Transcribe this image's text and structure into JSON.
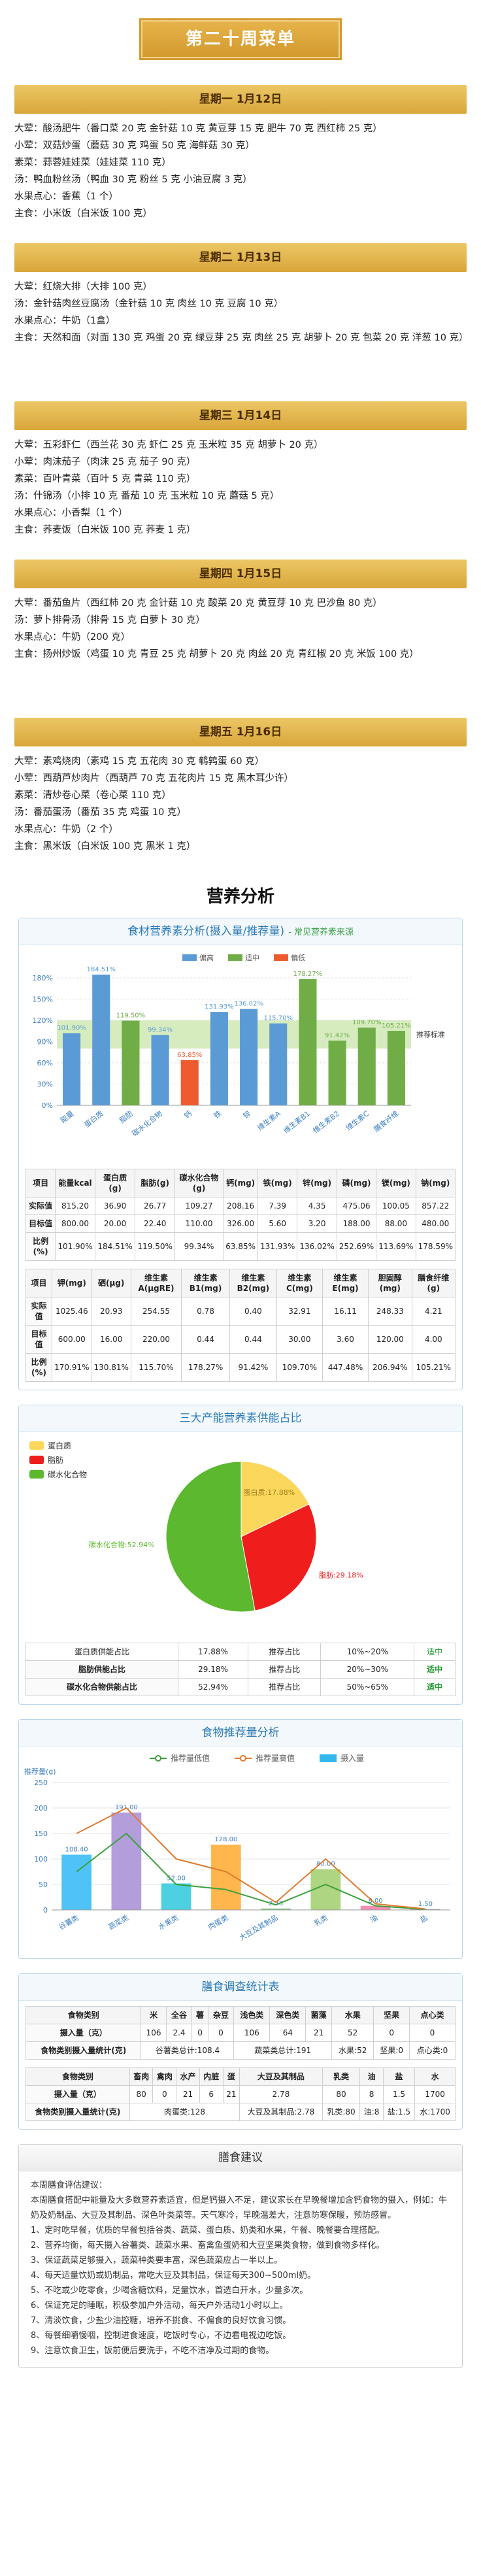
{
  "title": "第二十周菜单",
  "days": [
    {
      "header": "星期一 1月12日",
      "lines": [
        "大荤：酸汤肥牛（番口菜 20 克 金针菇 10 克 黄豆芽 15 克 肥牛 70 克 西红柿 25 克）",
        "小荤：双菇炒蛋（蘑菇 30 克 鸡蛋 50 克 海鲜菇 30 克）",
        "素菜：蒜蓉娃娃菜（娃娃菜 110 克）",
        "汤：鸭血粉丝汤（鸭血 30 克 粉丝 5 克 小油豆腐 3 克）",
        "水果点心：香蕉（1 个）",
        "主食：小米饭（白米饭 100 克）"
      ]
    },
    {
      "header": "星期二 1月13日",
      "lines": [
        "大荤：红烧大排（大排 100 克）",
        "汤：金针菇肉丝豆腐汤（金针菇 10 克 肉丝 10 克 豆腐 10 克）",
        "水果点心：牛奶（1盒）",
        "主食：天然和面（对面 130 克 鸡蛋 20 克 绿豆芽 25 克 肉丝 25 克 胡萝卜 20 克 包菜 20 克 洋葱 10 克）"
      ]
    },
    {
      "header": "星期三 1月14日",
      "lines": [
        "大荤：五彩虾仁（西兰花 30 克 虾仁 25 克 玉米粒 35 克 胡萝卜 20 克）",
        "小荤：肉沫茄子（肉沫 25 克 茄子 90 克）",
        "素菜：百叶青菜（百叶 5 克 青菜 110 克）",
        "汤：什锦汤（小排 10 克 番茄 10 克 玉米粒 10 克 蘑菇 5 克）",
        "水果点心：小香梨（1 个）",
        "主食：荞麦饭（白米饭 100 克 荞麦 1 克）"
      ]
    },
    {
      "header": "星期四 1月15日",
      "lines": [
        "大荤：番茄鱼片（西红柿 20 克 金针菇 10 克 酸菜 20 克 黄豆芽 10 克 巴沙鱼 80 克）",
        "汤：萝卜排骨汤（排骨 15 克 白萝卜 30 克）",
        "水果点心：牛奶（200 克）",
        "主食：扬州炒饭（鸡蛋 10 克 青豆 25 克 胡萝卜 20 克 肉丝 20 克 青红椒 20 克 米饭 100 克）"
      ]
    },
    {
      "header": "星期五 1月16日",
      "lines": [
        "大荤：素鸡烧肉（素鸡 15 克 五花肉 30 克 鹌鹑蛋 60 克）",
        "小荤：西葫芦炒肉片（西葫芦 70 克 五花肉片 15 克 黑木耳少许）",
        "素菜：清炒卷心菜（卷心菜 110 克）",
        "汤：番茄蛋汤（番茄 35 克 鸡蛋 10 克）",
        "水果点心：牛奶（2 个）",
        "主食：黑米饭（白米饭 100 克 黑米 1 克）"
      ]
    }
  ],
  "section_title": "营养分析",
  "chart_data": [
    {
      "type": "bar",
      "title": "食材营养素分析(摄入量/推荐量)",
      "subtitle": "- 常见营养素来源",
      "categories": [
        "能量",
        "蛋白质",
        "脂肪",
        "碳水化合物",
        "钙",
        "铁",
        "锌",
        "维生素A",
        "维生素B1",
        "维生素B2",
        "维生素C",
        "膳食纤维"
      ],
      "values": [
        101.9,
        184.51,
        119.5,
        99.34,
        63.85,
        131.93,
        136.02,
        115.7,
        178.27,
        91.42,
        109.7,
        105.21
      ],
      "value_labels": [
        "101.90%",
        "184.51%",
        "119.50%",
        "99.34%",
        "63.85%",
        "131.93%",
        "136.02%",
        "115.70%",
        "178.27%",
        "91.42%",
        "109.70%",
        "105.21%"
      ],
      "colors": [
        "#5b9bd5",
        "#5b9bd5",
        "#70ad47",
        "#5b9bd5",
        "#ed5b2f",
        "#5b9bd5",
        "#5b9bd5",
        "#5b9bd5",
        "#70ad47",
        "#70ad47",
        "#70ad47",
        "#70ad47"
      ],
      "legend": [
        {
          "name": "偏高",
          "color": "#5b9bd5"
        },
        {
          "name": "适中",
          "color": "#70ad47"
        },
        {
          "name": "偏低",
          "color": "#ed5b2f"
        }
      ],
      "band": {
        "label": "推荐标准",
        "range": [
          80,
          120
        ],
        "color": "#b5dc8a"
      },
      "ylim": [
        0,
        180
      ],
      "yticks": [
        {
          "value": 0,
          "label": "0%"
        },
        {
          "value": 30,
          "label": "30%"
        },
        {
          "value": 60,
          "label": "60%"
        },
        {
          "value": 90,
          "label": "90%"
        },
        {
          "value": 120,
          "label": "120%"
        },
        {
          "value": 150,
          "label": "150%"
        },
        {
          "value": 180,
          "label": "180%"
        }
      ],
      "grid": true
    },
    {
      "type": "pie",
      "title": "三大产能营养素供能占比",
      "categories": [
        "蛋白质",
        "脂肪",
        "碳水化合物"
      ],
      "values": [
        17.88,
        29.18,
        52.94
      ],
      "value_labels": [
        "蛋白质:17.88%",
        "脂肪:29.18%",
        "碳水化合物:52.94%"
      ],
      "colors": [
        "#fbd75b",
        "#f01d1d",
        "#5cb82e"
      ]
    },
    {
      "type": "combo",
      "title": "食物推荐量分析",
      "y_label": "推荐量(g)",
      "categories": [
        "谷薯类",
        "蔬菜类",
        "水果类",
        "肉蛋类",
        "大豆及其制品",
        "乳类",
        "油",
        "盐"
      ],
      "series": [
        {
          "name": "推荐量低值",
          "type": "line",
          "color": "#3ca03c",
          "values": [
            75,
            150,
            50,
            40,
            10,
            50,
            8,
            1
          ]
        },
        {
          "name": "推荐量高值",
          "type": "line",
          "color": "#e07a30",
          "values": [
            150,
            200,
            100,
            75,
            15,
            100,
            12,
            2
          ]
        },
        {
          "name": "摄入量",
          "type": "bar",
          "color": "#33b8ee",
          "values": [
            108.4,
            191,
            52,
            128,
            2.78,
            80,
            8,
            1.5
          ],
          "value_labels": [
            "108.40",
            "191.00",
            "52.00",
            "128.00",
            "2.78",
            "80.00",
            "8.00",
            "1.50"
          ]
        }
      ],
      "colors": [
        "#4fc3f7",
        "#b39ddb",
        "#4dd0e1",
        "#ffb74d",
        "#81c784",
        "#aed581",
        "#f48fb1",
        "#90a4ae"
      ],
      "ylim": [
        0,
        250
      ],
      "yticks": [
        0,
        50,
        100,
        150,
        200,
        250
      ],
      "grid": true
    }
  ],
  "nutrient_table": [
    [
      [
        "项目",
        "能量kcal",
        "蛋白质(g)",
        "脂肪(g)",
        "碳水化合物(g)",
        "钙(mg)",
        "铁(mg)",
        "锌(mg)",
        "磷(mg)",
        "镁(mg)",
        "钠(mg)"
      ],
      [
        "实际值",
        "815.20",
        "36.90",
        "26.77",
        "109.27",
        "208.16",
        "7.39",
        "4.35",
        "475.06",
        "100.05",
        "857.22"
      ],
      [
        "目标值",
        "800.00",
        "20.00",
        "22.40",
        "110.00",
        "326.00",
        "5.60",
        "3.20",
        "188.00",
        "88.00",
        "480.00"
      ],
      [
        "比例(%)",
        "101.90%",
        "184.51%",
        "119.50%",
        "99.34%",
        "63.85%",
        "131.93%",
        "136.02%",
        "252.69%",
        "113.69%",
        "178.59%"
      ]
    ],
    [
      [
        "项目",
        "钾(mg)",
        "硒(μg)",
        "维生素A(μgRE)",
        "维生素B1(mg)",
        "维生素B2(mg)",
        "维生素C(mg)",
        "维生素E(mg)",
        "胆固醇(mg)",
        "膳食纤维(g)"
      ],
      [
        "实际值",
        "1025.46",
        "20.93",
        "254.55",
        "0.78",
        "0.40",
        "32.91",
        "16.11",
        "248.33",
        "4.21"
      ],
      [
        "目标值",
        "600.00",
        "16.00",
        "220.00",
        "0.44",
        "0.44",
        "30.00",
        "3.60",
        "120.00",
        "4.00"
      ],
      [
        "比例(%)",
        "170.91%",
        "130.81%",
        "115.70%",
        "178.27%",
        "91.42%",
        "109.70%",
        "447.48%",
        "206.94%",
        "105.21%"
      ]
    ]
  ],
  "energy_table": [
    [
      "蛋白质供能占比",
      "17.88%",
      "推荐占比",
      "10%~20%",
      "适中"
    ],
    [
      "脂肪供能占比",
      "29.18%",
      "推荐占比",
      "20%~30%",
      "适中"
    ],
    [
      "碳水化合物供能占比",
      "52.94%",
      "推荐占比",
      "50%~65%",
      "适中"
    ]
  ],
  "food_stats": {
    "title": "膳食调查统计表",
    "tables": [
      [
        [
          "食物类别",
          "米",
          "全谷",
          "薯",
          "杂豆",
          "浅色类",
          "深色类",
          "菌藻",
          "水果",
          "坚果",
          "点心类"
        ],
        [
          "摄入量（克）",
          "106",
          "2.4",
          "0",
          "0",
          "106",
          "64",
          "21",
          "52",
          "0",
          "0"
        ],
        [
          "食物类别摄入量统计(克)",
          "谷薯类总计:108.4",
          "蔬菜类总计:191",
          "水果:52",
          "坚果:0",
          "点心类:0"
        ]
      ],
      [
        [
          "食物类别",
          "畜肉",
          "禽肉",
          "水产",
          "内脏",
          "蛋",
          "大豆及其制品",
          "乳类",
          "油",
          "盐",
          "水"
        ],
        [
          "摄入量（克）",
          "80",
          "0",
          "21",
          "6",
          "21",
          "2.78",
          "80",
          "8",
          "1.5",
          "1700"
        ],
        [
          "食物类别摄入量统计(克)",
          "肉蛋类:128",
          "大豆及其制品:2.78",
          "乳类:80",
          "油:8",
          "盐:1.5",
          "水:1700"
        ]
      ]
    ]
  },
  "advice": {
    "title": "膳食建议",
    "paragraphs": [
      "本周膳食评估建议：",
      "本周膳食搭配中能量及大多数营养素适宜，但是钙摄入不足，建议家长在早晚餐增加含钙食物的摄入，例如：牛奶及奶制品、大豆及其制品、深色叶类菜等。天气寒冷，早晚温差大，注意防寒保暖，预防感冒。",
      "1、定时吃早餐，优质的早餐包括谷类、蔬菜、蛋白质、奶类和水果，午餐、晚餐要合理搭配。",
      "2、营养均衡，每天摄入谷薯类、蔬菜水果、畜禽鱼蛋奶和大豆坚果类食物，做到食物多样化。",
      "3、保证蔬菜足够摄入，蔬菜种类要丰富，深色蔬菜应占一半以上。",
      "4、每天适量饮奶或奶制品，常吃大豆及其制品，保证每天300~500ml奶。",
      "5、不吃或少吃零食，少喝含糖饮料，足量饮水，首选白开水，少量多次。",
      "6、保证充足的睡眠，积极参加户外活动，每天户外活动1小时以上。",
      "7、清淡饮食，少盐少油控糖，培养不挑食、不偏食的良好饮食习惯。",
      "8、每餐细嚼慢咽，控制进食速度，吃饭时专心，不边看电视边吃饭。",
      "9、注意饮食卫生，饭前便后要洗手，不吃不洁净及过期的食物。"
    ]
  }
}
